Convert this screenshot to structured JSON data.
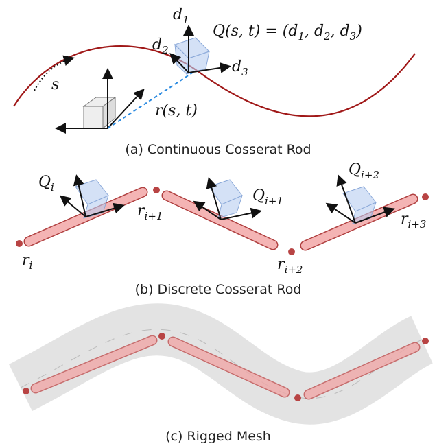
{
  "panel_a": {
    "caption": "(a) Continuous Cosserat Rod",
    "arc_label": "s",
    "frame_labels": [
      {
        "base": "d",
        "sub": "1"
      },
      {
        "base": "d",
        "sub": "2"
      },
      {
        "base": "d",
        "sub": "3"
      }
    ],
    "equation": [
      "Q(s, t) = (d",
      "1",
      ", d",
      "2",
      ", d",
      "3",
      ")"
    ],
    "position_label": "r(s, t)"
  },
  "panel_b": {
    "caption": "(b) Discrete Cosserat Rod",
    "frame_labels": [
      {
        "base": "Q",
        "sub": "i"
      },
      {
        "base": "Q",
        "sub": "i+1"
      },
      {
        "base": "Q",
        "sub": "i+2"
      }
    ],
    "node_labels": [
      {
        "base": "r",
        "sub": "i"
      },
      {
        "base": "r",
        "sub": "i+1"
      },
      {
        "base": "r",
        "sub": "i+2"
      },
      {
        "base": "r",
        "sub": "i+3"
      }
    ]
  },
  "panel_c": {
    "caption": "(c) Rigged Mesh"
  }
}
